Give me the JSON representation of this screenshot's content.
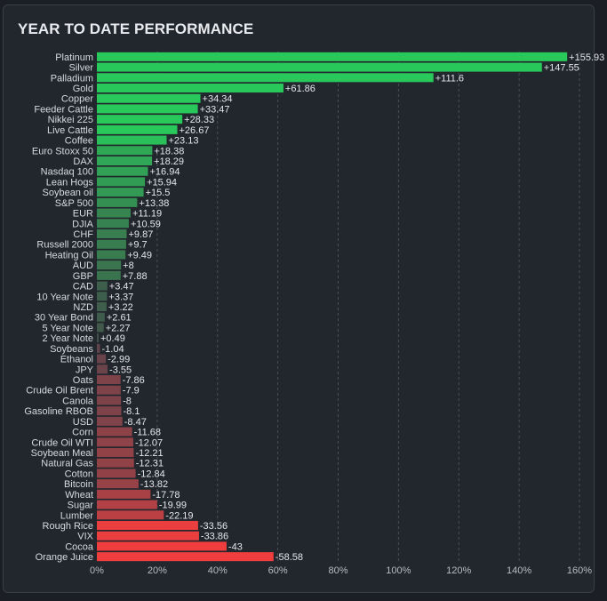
{
  "title": "YEAR TO DATE PERFORMANCE",
  "colors": {
    "background": "#22262d",
    "grid": "#4a4f58",
    "text": "#d7dadf",
    "axis_text": "#b8bcc3"
  },
  "chart_data": {
    "type": "bar",
    "orientation": "horizontal",
    "title": "YEAR TO DATE PERFORMANCE",
    "xlabel": "",
    "ylabel": "",
    "xlim": [
      0,
      160
    ],
    "x_ticks": [
      "0%",
      "20%",
      "40%",
      "60%",
      "80%",
      "100%",
      "120%",
      "140%",
      "160%"
    ],
    "grid": "vertical dashed",
    "legend": "none",
    "bar_length_metric": "absolute value",
    "categories": [
      "Platinum",
      "Silver",
      "Palladium",
      "Gold",
      "Copper",
      "Feeder Cattle",
      "Nikkei 225",
      "Live Cattle",
      "Coffee",
      "Euro Stoxx 50",
      "DAX",
      "Nasdaq 100",
      "Lean Hogs",
      "Soybean oil",
      "S&P 500",
      "EUR",
      "DJIA",
      "CHF",
      "Russell 2000",
      "Heating Oil",
      "AUD",
      "GBP",
      "CAD",
      "10 Year Note",
      "NZD",
      "30 Year Bond",
      "5 Year Note",
      "2 Year Note",
      "Soybeans",
      "Ethanol",
      "JPY",
      "Oats",
      "Crude Oil Brent",
      "Canola",
      "Gasoline RBOB",
      "USD",
      "Corn",
      "Crude Oil WTI",
      "Soybean Meal",
      "Natural Gas",
      "Cotton",
      "Bitcoin",
      "Wheat",
      "Sugar",
      "Lumber",
      "Rough Rice",
      "VIX",
      "Cocoa",
      "Orange Juice"
    ],
    "values": [
      155.93,
      147.55,
      111.6,
      61.86,
      34.34,
      33.47,
      28.33,
      26.67,
      23.13,
      18.38,
      18.29,
      16.94,
      15.94,
      15.5,
      13.38,
      11.19,
      10.59,
      9.87,
      9.7,
      9.49,
      8,
      7.88,
      3.47,
      3.37,
      3.22,
      2.61,
      2.27,
      0.49,
      -1.04,
      -2.99,
      -3.55,
      -7.86,
      -7.9,
      -8,
      -8.1,
      -8.47,
      -11.68,
      -12.07,
      -12.21,
      -12.31,
      -12.84,
      -13.82,
      -17.78,
      -19.99,
      -22.19,
      -33.56,
      -33.86,
      -43,
      -58.58
    ],
    "value_labels": [
      "+155.93",
      "+147.55",
      "+111.6",
      "+61.86",
      "+34.34",
      "+33.47",
      "+28.33",
      "+26.67",
      "+23.13",
      "+18.38",
      "+18.29",
      "+16.94",
      "+15.94",
      "+15.5",
      "+13.38",
      "+11.19",
      "+10.59",
      "+9.87",
      "+9.7",
      "+9.49",
      "+8",
      "+7.88",
      "+3.47",
      "+3.37",
      "+3.22",
      "+2.61",
      "+2.27",
      "+0.49",
      "-1.04",
      "-2.99",
      "-3.55",
      "-7.86",
      "-7.9",
      "-8",
      "-8.1",
      "-8.47",
      "-11.68",
      "-12.07",
      "-12.21",
      "-12.31",
      "-12.84",
      "-13.82",
      "-17.78",
      "-19.99",
      "-22.19",
      "-33.56",
      "-33.86",
      "-43",
      "-58.58"
    ]
  }
}
